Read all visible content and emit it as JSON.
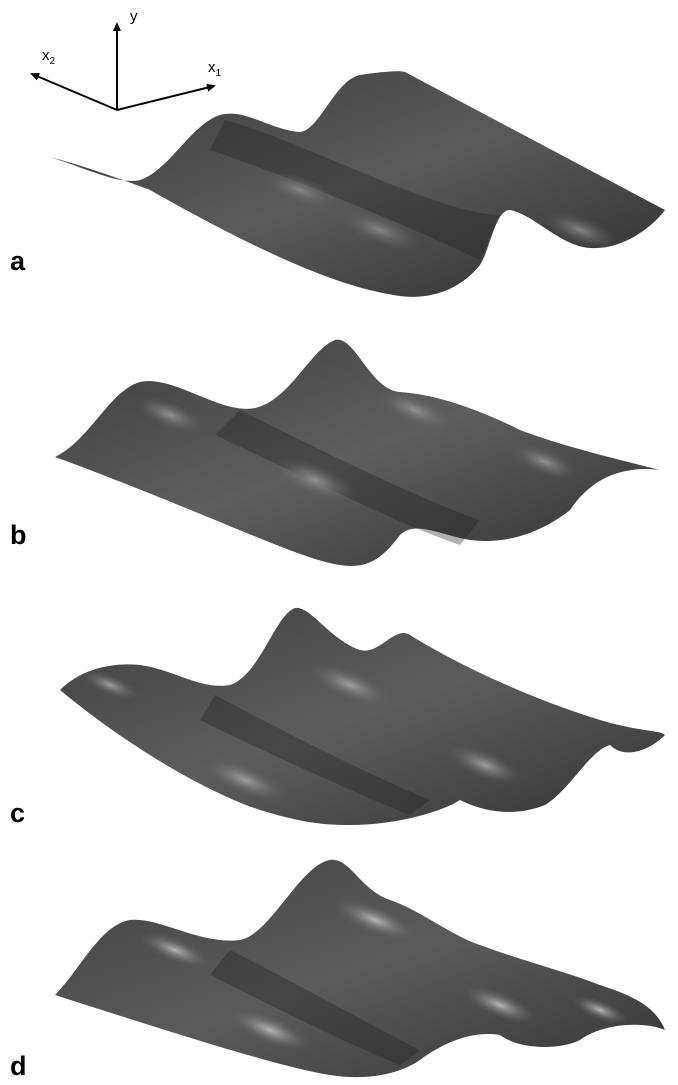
{
  "axes": {
    "y": "y",
    "x1_base": "x",
    "x1_sub": "1",
    "x2_base": "x",
    "x2_sub": "2"
  },
  "panels": [
    {
      "label": "a"
    },
    {
      "label": "b"
    },
    {
      "label": "c"
    },
    {
      "label": "d"
    }
  ],
  "colors": {
    "surface_dark": "#2b2b2b",
    "surface_mid": "#555555",
    "surface_light": "#7d7d7d",
    "highlight": "#a8a8a8"
  }
}
